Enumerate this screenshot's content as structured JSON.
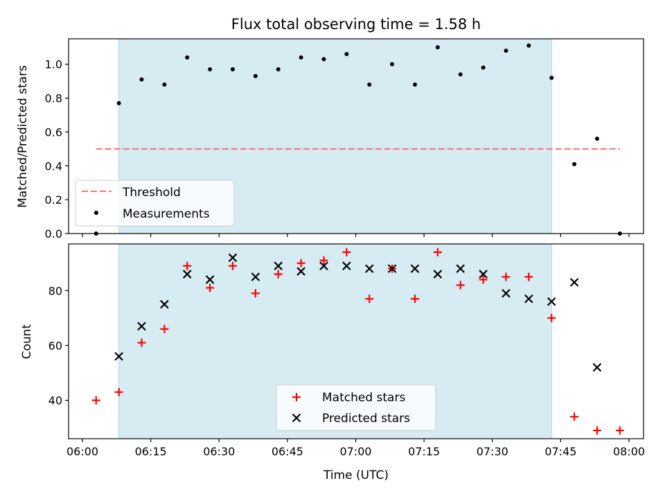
{
  "title": "Flux total observing time = 1.58 h",
  "xlabel": "Time (UTC)",
  "x_ticks": [
    "06:00",
    "06:15",
    "06:30",
    "06:45",
    "07:00",
    "07:15",
    "07:30",
    "07:45",
    "08:00"
  ],
  "colors": {
    "span": "#add8e6",
    "threshold": "#ff6f6f",
    "measurements": "#000000",
    "matched": "#ff0000",
    "predicted": "#000000"
  },
  "chart_data": [
    {
      "type": "scatter",
      "ylabel": "Matched/Predicted stars",
      "ylim": [
        0,
        1.15
      ],
      "xlim": [
        "06:00",
        "08:00"
      ],
      "y_ticks": [
        "0.0",
        "0.2",
        "0.4",
        "0.6",
        "0.8",
        "1.0"
      ],
      "span": [
        "06:08",
        "07:43"
      ],
      "legend": {
        "placement": "lower-left",
        "entries": [
          "Threshold",
          "Measurements"
        ]
      },
      "threshold": {
        "name": "Threshold",
        "value": 0.5,
        "x_range": [
          "06:03",
          "07:58"
        ]
      },
      "series": [
        {
          "name": "Measurements",
          "x": [
            "06:03",
            "06:08",
            "06:13",
            "06:18",
            "06:23",
            "06:28",
            "06:33",
            "06:38",
            "06:43",
            "06:48",
            "06:53",
            "06:58",
            "07:03",
            "07:08",
            "07:13",
            "07:18",
            "07:23",
            "07:28",
            "07:33",
            "07:38",
            "07:43",
            "07:48",
            "07:53",
            "07:58"
          ],
          "y": [
            0.0,
            0.77,
            0.91,
            0.88,
            1.04,
            0.97,
            0.97,
            0.93,
            0.97,
            1.04,
            1.03,
            1.06,
            0.88,
            1.0,
            0.88,
            1.1,
            0.94,
            0.98,
            1.08,
            1.11,
            0.92,
            0.41,
            0.56,
            0.0
          ]
        }
      ]
    },
    {
      "type": "scatter",
      "ylabel": "Count",
      "ylim": [
        26,
        97
      ],
      "xlim": [
        "06:00",
        "08:00"
      ],
      "y_ticks": [
        "40",
        "60",
        "80"
      ],
      "span": [
        "06:08",
        "07:43"
      ],
      "legend": {
        "placement": "lower-center",
        "entries": [
          "Matched stars",
          "Predicted stars"
        ]
      },
      "series": [
        {
          "name": "Matched stars",
          "marker": "+",
          "x": [
            "06:03",
            "06:08",
            "06:13",
            "06:18",
            "06:23",
            "06:28",
            "06:33",
            "06:38",
            "06:43",
            "06:48",
            "06:53",
            "06:58",
            "07:03",
            "07:08",
            "07:13",
            "07:18",
            "07:23",
            "07:28",
            "07:33",
            "07:38",
            "07:43",
            "07:48",
            "07:53",
            "07:58"
          ],
          "y": [
            40,
            43,
            61,
            66,
            89,
            81,
            89,
            79,
            86,
            90,
            91,
            94,
            77,
            88,
            77,
            94,
            82,
            84,
            85,
            85,
            70,
            34,
            29,
            29
          ]
        },
        {
          "name": "Predicted stars",
          "marker": "x",
          "x": [
            "06:08",
            "06:13",
            "06:18",
            "06:23",
            "06:28",
            "06:33",
            "06:38",
            "06:43",
            "06:48",
            "06:53",
            "06:58",
            "07:03",
            "07:08",
            "07:13",
            "07:18",
            "07:23",
            "07:28",
            "07:33",
            "07:38",
            "07:43",
            "07:48",
            "07:53"
          ],
          "y": [
            56,
            67,
            75,
            86,
            84,
            92,
            85,
            89,
            87,
            89,
            89,
            88,
            88,
            88,
            86,
            88,
            86,
            79,
            77,
            76,
            83,
            52
          ]
        }
      ]
    }
  ]
}
